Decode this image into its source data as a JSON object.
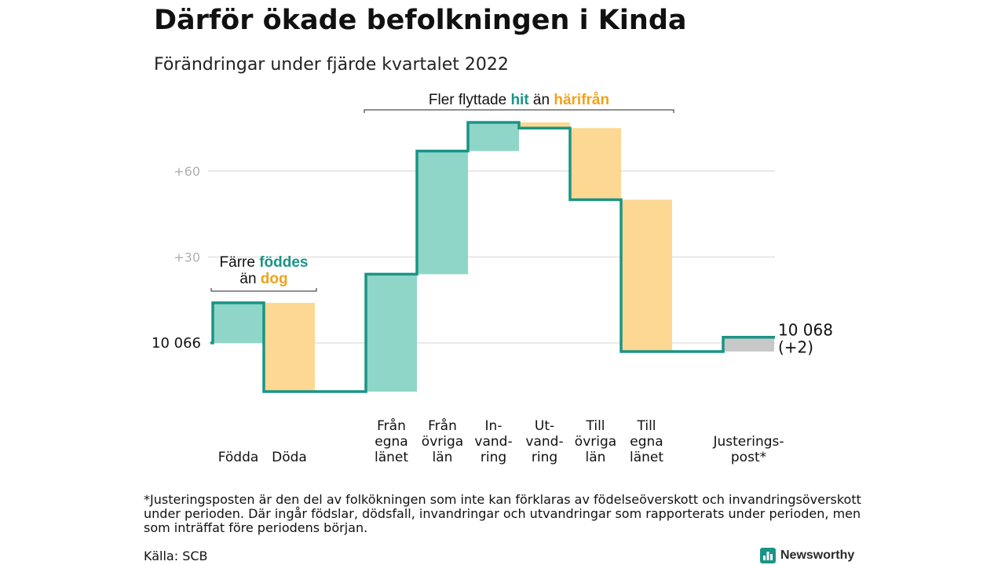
{
  "title": "Därför ökade befolkningen i Kinda",
  "subtitle": "Förändringar under fjärde kvartalet 2022",
  "colors": {
    "inflow": "#8fd6c8",
    "outflow": "#fcd893",
    "adjustment": "#c8c8c8",
    "line": "#1a9486",
    "grid": "#e2e2e2",
    "tick": "#b0b0b0",
    "hit": "#1a9486",
    "harifran": "#f0a21b"
  },
  "chart_data": {
    "type": "waterfall",
    "start_value": 10066,
    "start_label": "10 066",
    "end_label": "10 068",
    "end_change_label": "(+2)",
    "y_ticks": [
      {
        "value": 30,
        "label": "+30"
      },
      {
        "value": 60,
        "label": "+60"
      }
    ],
    "ylim": [
      -18,
      78
    ],
    "steps": [
      {
        "label_lines": [
          "Födda"
        ],
        "change": 14,
        "kind": "inflow"
      },
      {
        "label_lines": [
          "Döda"
        ],
        "change": -31,
        "kind": "outflow"
      },
      {
        "label_lines": [],
        "change": 0,
        "kind": "gap"
      },
      {
        "label_lines": [
          "Från",
          "egna",
          "länet"
        ],
        "change": 41,
        "kind": "inflow"
      },
      {
        "label_lines": [
          "Från",
          "övriga",
          "län"
        ],
        "change": 43,
        "kind": "inflow"
      },
      {
        "label_lines": [
          "In-",
          "vand-",
          "ring"
        ],
        "change": 10,
        "kind": "inflow"
      },
      {
        "label_lines": [
          "Ut-",
          "vand-",
          "ring"
        ],
        "change": -2,
        "kind": "outflow"
      },
      {
        "label_lines": [
          "Till",
          "övriga",
          "län"
        ],
        "change": -25,
        "kind": "outflow"
      },
      {
        "label_lines": [
          "Till",
          "egna",
          "länet"
        ],
        "change": -53,
        "kind": "outflow"
      },
      {
        "label_lines": [],
        "change": 0,
        "kind": "gap"
      },
      {
        "label_lines": [
          "Justerings-",
          "post*"
        ],
        "change": 5,
        "kind": "adjustment"
      }
    ],
    "annotations": [
      {
        "parts": [
          {
            "text": "Färre ",
            "style": "plain"
          },
          {
            "text": "föddes",
            "style": "hit"
          }
        ],
        "parts2": [
          {
            "text": "än ",
            "style": "plain"
          },
          {
            "text": "dog",
            "style": "harifran"
          }
        ],
        "from_step": 0,
        "to_step": 1
      },
      {
        "parts": [
          {
            "text": "Fler flyttade ",
            "style": "plain"
          },
          {
            "text": "hit",
            "style": "hit"
          },
          {
            "text": " än ",
            "style": "plain"
          },
          {
            "text": "härifrån",
            "style": "harifran"
          }
        ],
        "from_step": 3,
        "to_step": 8
      }
    ]
  },
  "footnote": "*Justeringsposten är den del av folkökningen som inte kan förklaras av födelseöverskott och invandringsöverskott under perioden. Där ingår födslar, dödsfall, invandringar och utvandringar som rapporterats under perioden, men som inträffat före periodens början.",
  "source": "Källa: SCB",
  "brand": {
    "name": "Newsworthy",
    "icon": "bar-chart-logo-icon"
  }
}
